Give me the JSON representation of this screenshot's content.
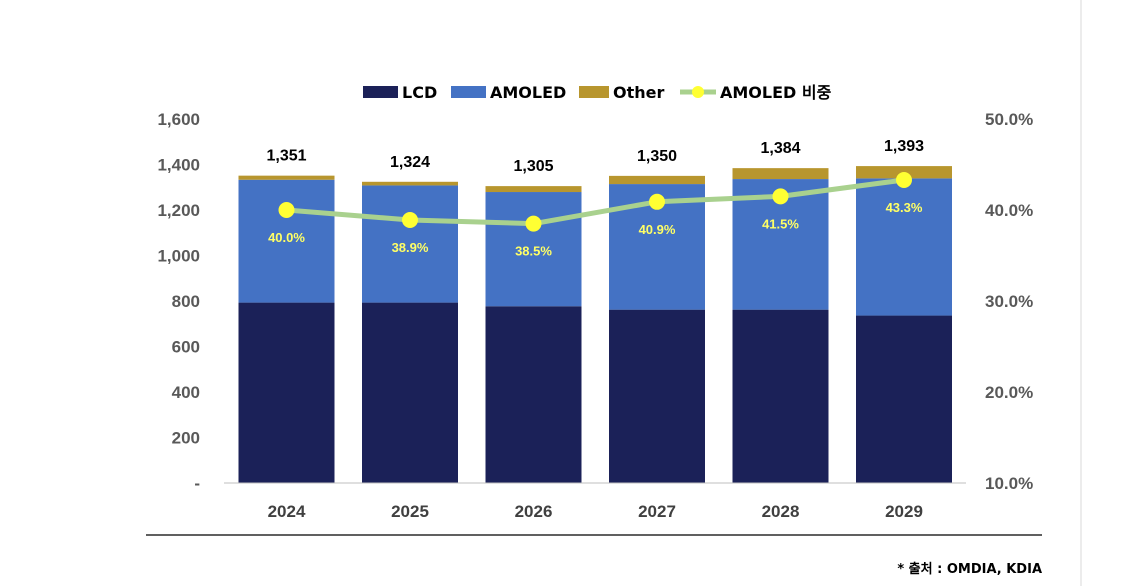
{
  "chart_data": {
    "type": "bar",
    "stacked": true,
    "categories": [
      "2024",
      "2025",
      "2026",
      "2027",
      "2028",
      "2029"
    ],
    "series": [
      {
        "name": "LCD",
        "type": "bar",
        "axis": "left",
        "color": "#1b2158",
        "values": [
          793,
          793,
          777,
          762,
          762,
          736
        ]
      },
      {
        "name": "AMOLED",
        "type": "bar",
        "axis": "left",
        "color": "#4472c4",
        "values": [
          540,
          515,
          502,
          552,
          574,
          603
        ]
      },
      {
        "name": "Other",
        "type": "bar",
        "axis": "left",
        "color": "#b8962e",
        "values": [
          18,
          16,
          26,
          36,
          48,
          54
        ]
      },
      {
        "name": "AMOLED 비중",
        "type": "line",
        "axis": "right",
        "color": "#a9d18e",
        "marker_color": "#ffff33",
        "values": [
          40.0,
          38.9,
          38.5,
          40.9,
          41.5,
          43.3
        ]
      }
    ],
    "totals": [
      "1,351",
      "1,324",
      "1,305",
      "1,350",
      "1,384",
      "1,393"
    ],
    "pct_labels": [
      "40.0%",
      "38.9%",
      "38.5%",
      "40.9%",
      "41.5%",
      "43.3%"
    ],
    "y_left": {
      "min": 0,
      "max": 1600,
      "ticks": [
        "-",
        "200",
        "400",
        "600",
        "800",
        "1,000",
        "1,200",
        "1,400",
        "1,600"
      ]
    },
    "y_right": {
      "min": 10,
      "max": 50,
      "ticks": [
        "10.0%",
        "20.0%",
        "30.0%",
        "40.0%",
        "50.0%"
      ]
    },
    "legend_position": "top",
    "grid": false
  },
  "source": "* 출처 : OMDIA, KDIA"
}
